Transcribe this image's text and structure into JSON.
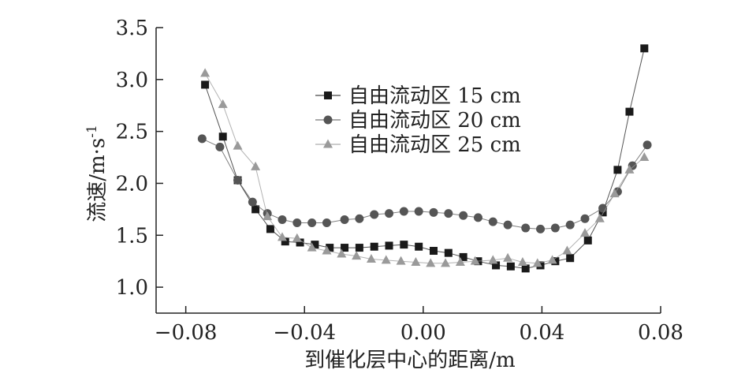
{
  "chart_data": {
    "type": "line",
    "title": "",
    "xlabel": "到催化层中心的距离/m",
    "ylabel": "流速/m·s",
    "ylabel_superscript": "-1",
    "xlim": [
      -0.09,
      0.08
    ],
    "ylim": [
      0.75,
      3.5
    ],
    "xticks": [
      -0.08,
      -0.04,
      0.0,
      0.04,
      0.08
    ],
    "xtick_labels": [
      "−0.08",
      "−0.04",
      "0.00",
      "0.04",
      "0.08"
    ],
    "yticks": [
      1.0,
      1.5,
      2.0,
      2.5,
      3.0,
      3.5
    ],
    "ytick_labels": [
      "1.0",
      "1.5",
      "2.0",
      "2.5",
      "3.0",
      "3.5"
    ],
    "grid": false,
    "legend_position": "top-center",
    "series": [
      {
        "name": "自由流动区 15 cm",
        "marker": "square",
        "color": "#1a1a1a",
        "x": [
          -0.0735,
          -0.0675,
          -0.0625,
          -0.0565,
          -0.0515,
          -0.0465,
          -0.0415,
          -0.0365,
          -0.0315,
          -0.0265,
          -0.0215,
          -0.0165,
          -0.0115,
          -0.0065,
          -0.0015,
          0.0035,
          0.0085,
          0.0135,
          0.0185,
          0.0245,
          0.0295,
          0.0345,
          0.0395,
          0.0445,
          0.0495,
          0.0555,
          0.0605,
          0.0655,
          0.0695,
          0.0745
        ],
        "y": [
          2.95,
          2.45,
          2.03,
          1.75,
          1.56,
          1.44,
          1.43,
          1.41,
          1.38,
          1.38,
          1.38,
          1.39,
          1.4,
          1.41,
          1.39,
          1.35,
          1.33,
          1.29,
          1.25,
          1.21,
          1.2,
          1.18,
          1.21,
          1.25,
          1.28,
          1.45,
          1.72,
          2.13,
          2.69,
          3.3
        ]
      },
      {
        "name": "自由流动区 20 cm",
        "marker": "circle",
        "color": "#555555",
        "x": [
          -0.0745,
          -0.0685,
          -0.0625,
          -0.0575,
          -0.0525,
          -0.0475,
          -0.0425,
          -0.0375,
          -0.0325,
          -0.0265,
          -0.0215,
          -0.0165,
          -0.0115,
          -0.0065,
          -0.0015,
          0.0035,
          0.0085,
          0.0135,
          0.0185,
          0.0235,
          0.0285,
          0.0345,
          0.0395,
          0.0445,
          0.0495,
          0.0545,
          0.0605,
          0.0655,
          0.0705,
          0.0755
        ],
        "y": [
          2.43,
          2.35,
          2.03,
          1.82,
          1.71,
          1.65,
          1.62,
          1.62,
          1.62,
          1.65,
          1.66,
          1.7,
          1.71,
          1.73,
          1.73,
          1.72,
          1.71,
          1.69,
          1.67,
          1.63,
          1.6,
          1.57,
          1.56,
          1.57,
          1.6,
          1.66,
          1.76,
          1.92,
          2.17,
          2.37
        ]
      },
      {
        "name": "自由流动区 25 cm",
        "marker": "triangle",
        "color": "#9a9a9a",
        "x": [
          -0.0735,
          -0.0675,
          -0.0625,
          -0.0565,
          -0.0525,
          -0.0475,
          -0.0425,
          -0.0375,
          -0.0325,
          -0.0275,
          -0.0225,
          -0.0175,
          -0.0125,
          -0.0075,
          -0.0025,
          0.0025,
          0.0075,
          0.0125,
          0.0175,
          0.0235,
          0.0285,
          0.0335,
          0.0385,
          0.0435,
          0.0485,
          0.0545,
          0.0595,
          0.0645,
          0.0695,
          0.0745
        ],
        "y": [
          3.06,
          2.76,
          2.36,
          2.16,
          1.68,
          1.48,
          1.47,
          1.38,
          1.35,
          1.32,
          1.3,
          1.27,
          1.26,
          1.25,
          1.24,
          1.23,
          1.23,
          1.24,
          1.25,
          1.26,
          1.28,
          1.24,
          1.23,
          1.26,
          1.35,
          1.52,
          1.66,
          1.9,
          2.13,
          2.25
        ]
      }
    ]
  }
}
